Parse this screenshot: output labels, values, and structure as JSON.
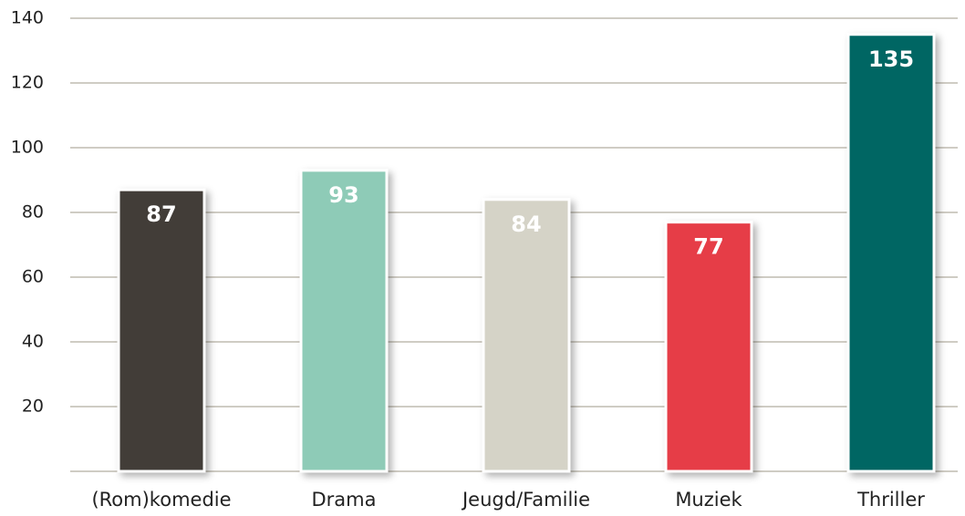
{
  "chart_data": {
    "type": "bar",
    "categories": [
      "(Rom)komedie",
      "Drama",
      "Jeugd/Familie",
      "Muziek",
      "Thriller"
    ],
    "values": [
      87,
      93,
      84,
      77,
      135
    ],
    "colors": [
      "#433e37",
      "#8ecbb7",
      "#d5d3c7",
      "#e63e46",
      "#036663"
    ],
    "ylim": [
      0,
      140
    ],
    "yticks": [
      20,
      40,
      60,
      80,
      100,
      120,
      140
    ],
    "grid": true
  }
}
